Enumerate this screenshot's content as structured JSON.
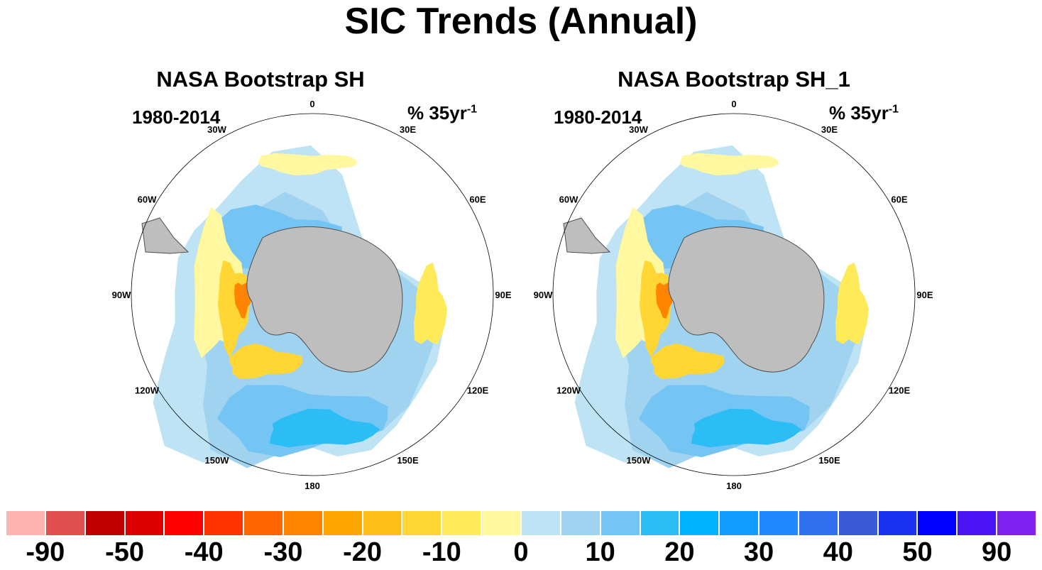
{
  "title": "SIC Trends (Annual)",
  "panels": [
    {
      "title": "NASA Bootstrap SH",
      "period": "1980-2014",
      "units_base": "% 35yr",
      "units_sup": "-1"
    },
    {
      "title": "NASA Bootstrap SH_1",
      "period": "1980-2014",
      "units_base": "% 35yr",
      "units_sup": "-1"
    }
  ],
  "longitude_labels": [
    "0",
    "30E",
    "60E",
    "90E",
    "120E",
    "150E",
    "180",
    "150W",
    "120W",
    "90W",
    "60W",
    "30W"
  ],
  "colorbar": {
    "colors": [
      "#ffb3b3",
      "#e05050",
      "#c00000",
      "#dc0000",
      "#ff0000",
      "#ff3300",
      "#ff6600",
      "#ff8500",
      "#ffa500",
      "#ffbe19",
      "#ffd633",
      "#ffea59",
      "#fff8a0",
      "#bde3f5",
      "#9fd3f0",
      "#74c5f3",
      "#2dbdf5",
      "#00b3ff",
      "#139cff",
      "#2288ff",
      "#3070ee",
      "#3a5ad8",
      "#1b33f0",
      "#0000ff",
      "#4a14f7",
      "#7f22f0"
    ],
    "labels": [
      "-90",
      "-50",
      "-40",
      "-30",
      "-20",
      "-10",
      "0",
      "10",
      "20",
      "30",
      "40",
      "50",
      "90"
    ]
  },
  "palette": {
    "land": "#bebebe",
    "coastline": "#505050",
    "circle": "#000000"
  }
}
